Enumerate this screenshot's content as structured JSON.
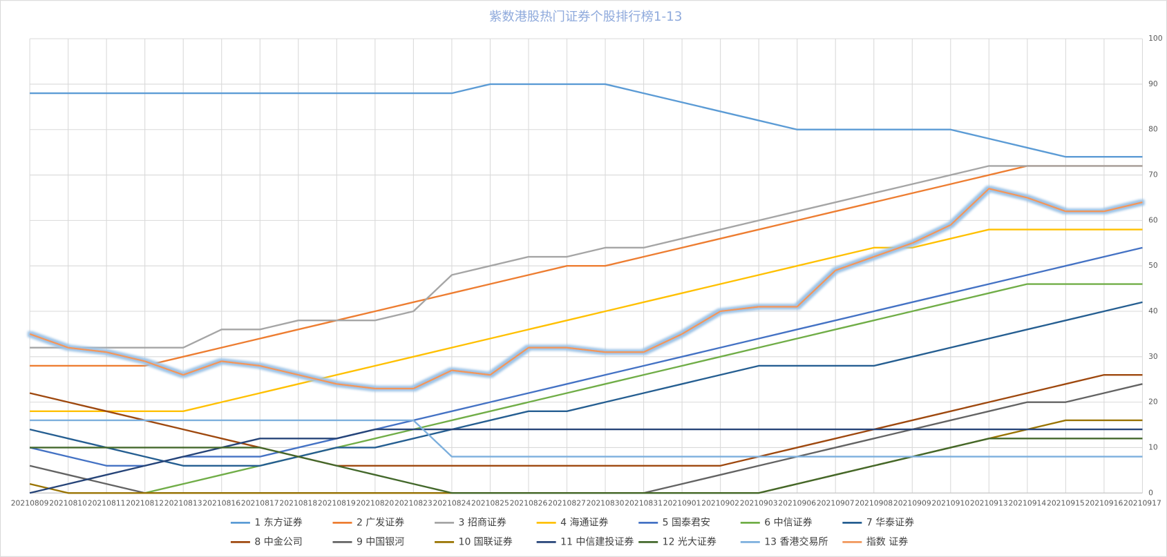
{
  "chart_data": {
    "type": "line",
    "title": "紫数港股热门证券个股排行榜1-13",
    "categories": [
      "20210809",
      "20210810",
      "20210811",
      "20210812",
      "20210813",
      "20210816",
      "20210817",
      "20210818",
      "20210819",
      "20210820",
      "20210823",
      "20210824",
      "20210825",
      "20210826",
      "20210827",
      "20210830",
      "20210831",
      "20210901",
      "20210902",
      "20210903",
      "20210906",
      "20210907",
      "20210908",
      "20210909",
      "20210910",
      "20210913",
      "20210914",
      "20210915",
      "20210916",
      "20210917"
    ],
    "ylim": [
      0,
      100
    ],
    "yticks": [
      0,
      10,
      20,
      30,
      40,
      50,
      60,
      70,
      80,
      90,
      100
    ],
    "grid": true,
    "y_axis_side": "right",
    "legend": "bottom",
    "series": [
      {
        "name": "1 东方证券",
        "color": "#5b9bd5",
        "values": [
          88,
          88,
          88,
          88,
          88,
          88,
          88,
          88,
          88,
          88,
          88,
          88,
          90,
          90,
          90,
          90,
          88,
          86,
          84,
          82,
          80,
          80,
          80,
          80,
          80,
          78,
          76,
          74,
          74,
          74
        ]
      },
      {
        "name": "2 广发证券",
        "color": "#ed7d31",
        "values": [
          28,
          28,
          28,
          28,
          30,
          32,
          34,
          36,
          38,
          40,
          42,
          44,
          46,
          48,
          50,
          50,
          52,
          54,
          56,
          58,
          60,
          62,
          64,
          66,
          68,
          70,
          72,
          72,
          72,
          72
        ]
      },
      {
        "name": "3 招商证券",
        "color": "#a5a5a5",
        "values": [
          32,
          32,
          32,
          32,
          32,
          36,
          36,
          38,
          38,
          38,
          40,
          48,
          50,
          52,
          52,
          54,
          54,
          56,
          58,
          60,
          62,
          64,
          66,
          68,
          70,
          72,
          72,
          72,
          72,
          72
        ]
      },
      {
        "name": "4 海通证券",
        "color": "#ffc000",
        "values": [
          18,
          18,
          18,
          18,
          18,
          20,
          22,
          24,
          26,
          28,
          30,
          32,
          34,
          36,
          38,
          40,
          42,
          44,
          46,
          48,
          50,
          52,
          54,
          54,
          56,
          58,
          58,
          58,
          58,
          58
        ]
      },
      {
        "name": "5 国泰君安",
        "color": "#4472c4",
        "values": [
          10,
          8,
          6,
          6,
          8,
          8,
          8,
          10,
          12,
          14,
          16,
          18,
          20,
          22,
          24,
          26,
          28,
          30,
          32,
          34,
          36,
          38,
          40,
          42,
          44,
          46,
          48,
          50,
          52,
          54
        ]
      },
      {
        "name": "6 中信证券",
        "color": "#70ad47",
        "values": [
          null,
          null,
          null,
          0,
          2,
          4,
          6,
          8,
          10,
          12,
          14,
          16,
          18,
          20,
          22,
          24,
          26,
          28,
          30,
          32,
          34,
          36,
          38,
          40,
          42,
          44,
          46,
          46,
          46,
          46
        ]
      },
      {
        "name": "7 华泰证券",
        "color": "#255e91",
        "values": [
          14,
          12,
          10,
          8,
          6,
          6,
          6,
          8,
          10,
          10,
          12,
          14,
          16,
          18,
          18,
          20,
          22,
          24,
          26,
          28,
          28,
          28,
          28,
          30,
          32,
          34,
          36,
          38,
          40,
          42
        ]
      },
      {
        "name": "8 中金公司",
        "color": "#9e480e",
        "values": [
          22,
          20,
          18,
          16,
          14,
          12,
          10,
          8,
          6,
          6,
          6,
          6,
          6,
          6,
          6,
          6,
          6,
          6,
          6,
          8,
          10,
          12,
          14,
          16,
          18,
          20,
          22,
          24,
          26,
          26
        ]
      },
      {
        "name": "9 中国银河",
        "color": "#636363",
        "values": [
          6,
          4,
          2,
          0,
          0,
          0,
          0,
          0,
          0,
          0,
          0,
          0,
          0,
          0,
          0,
          0,
          0,
          2,
          4,
          6,
          8,
          10,
          12,
          14,
          16,
          18,
          20,
          20,
          22,
          24
        ]
      },
      {
        "name": "10 国联证券",
        "color": "#997300",
        "values": [
          2,
          0,
          0,
          0,
          0,
          0,
          0,
          0,
          0,
          0,
          0,
          0,
          0,
          0,
          0,
          0,
          0,
          0,
          0,
          0,
          2,
          4,
          6,
          8,
          10,
          12,
          14,
          16,
          16,
          16
        ]
      },
      {
        "name": "11 中信建投证券",
        "color": "#264478",
        "values": [
          0,
          2,
          4,
          6,
          8,
          10,
          12,
          12,
          12,
          14,
          14,
          14,
          14,
          14,
          14,
          14,
          14,
          14,
          14,
          14,
          14,
          14,
          14,
          14,
          14,
          14,
          14,
          14,
          14,
          14
        ]
      },
      {
        "name": "12 光大证券",
        "color": "#43682b",
        "values": [
          10,
          10,
          10,
          10,
          10,
          10,
          10,
          8,
          6,
          4,
          2,
          0,
          0,
          0,
          0,
          0,
          0,
          0,
          0,
          0,
          2,
          4,
          6,
          8,
          10,
          12,
          12,
          12,
          12,
          12
        ]
      },
      {
        "name": "13 香港交易所",
        "color": "#7cafdd",
        "values": [
          16,
          16,
          16,
          16,
          16,
          16,
          16,
          16,
          16,
          16,
          16,
          8,
          8,
          8,
          8,
          8,
          8,
          8,
          8,
          8,
          8,
          8,
          8,
          8,
          8,
          8,
          8,
          8,
          8,
          8
        ]
      },
      {
        "name": "指数 证券",
        "color": "#f1975a",
        "glow": "#9dc3e6",
        "values": [
          35,
          32,
          31,
          29,
          26,
          29,
          28,
          26,
          24,
          23,
          23,
          27,
          26,
          32,
          32,
          31,
          31,
          35,
          40,
          41,
          41,
          49,
          52,
          55,
          59,
          67,
          65,
          62,
          62,
          64
        ]
      }
    ]
  }
}
